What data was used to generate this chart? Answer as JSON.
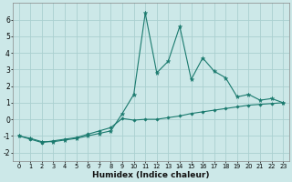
{
  "xlabel": "Humidex (Indice chaleur)",
  "background_color": "#cce8e8",
  "grid_color": "#aad0d0",
  "line_color": "#1a7a6e",
  "xlim": [
    -0.5,
    23.5
  ],
  "ylim": [
    -2.5,
    7.0
  ],
  "yticks": [
    -2,
    -1,
    0,
    1,
    2,
    3,
    4,
    5,
    6
  ],
  "xticks": [
    0,
    1,
    2,
    3,
    4,
    5,
    6,
    7,
    8,
    9,
    10,
    11,
    12,
    13,
    14,
    15,
    16,
    17,
    18,
    19,
    20,
    21,
    22,
    23
  ],
  "series1_x": [
    0,
    1,
    2,
    3,
    4,
    5,
    6,
    7,
    8,
    9,
    10,
    11,
    12,
    13,
    14,
    15,
    16,
    17,
    18,
    19,
    20,
    21,
    22,
    23
  ],
  "series1_y": [
    -1.0,
    -1.15,
    -1.35,
    -1.35,
    -1.25,
    -1.15,
    -1.0,
    -0.85,
    -0.7,
    0.35,
    1.5,
    6.4,
    2.8,
    3.5,
    5.6,
    2.4,
    3.7,
    2.9,
    2.5,
    1.35,
    1.5,
    1.15,
    1.25,
    1.0
  ],
  "series2_x": [
    0,
    1,
    2,
    3,
    4,
    5,
    6,
    7,
    8,
    9,
    10,
    11,
    12,
    13,
    14,
    15,
    16,
    17,
    18,
    19,
    20,
    21,
    22,
    23
  ],
  "series2_y": [
    -1.0,
    -1.2,
    -1.4,
    -1.3,
    -1.2,
    -1.1,
    -0.9,
    -0.7,
    -0.5,
    0.05,
    -0.05,
    0.0,
    0.0,
    0.1,
    0.2,
    0.35,
    0.45,
    0.55,
    0.65,
    0.75,
    0.85,
    0.9,
    0.95,
    1.0
  ]
}
